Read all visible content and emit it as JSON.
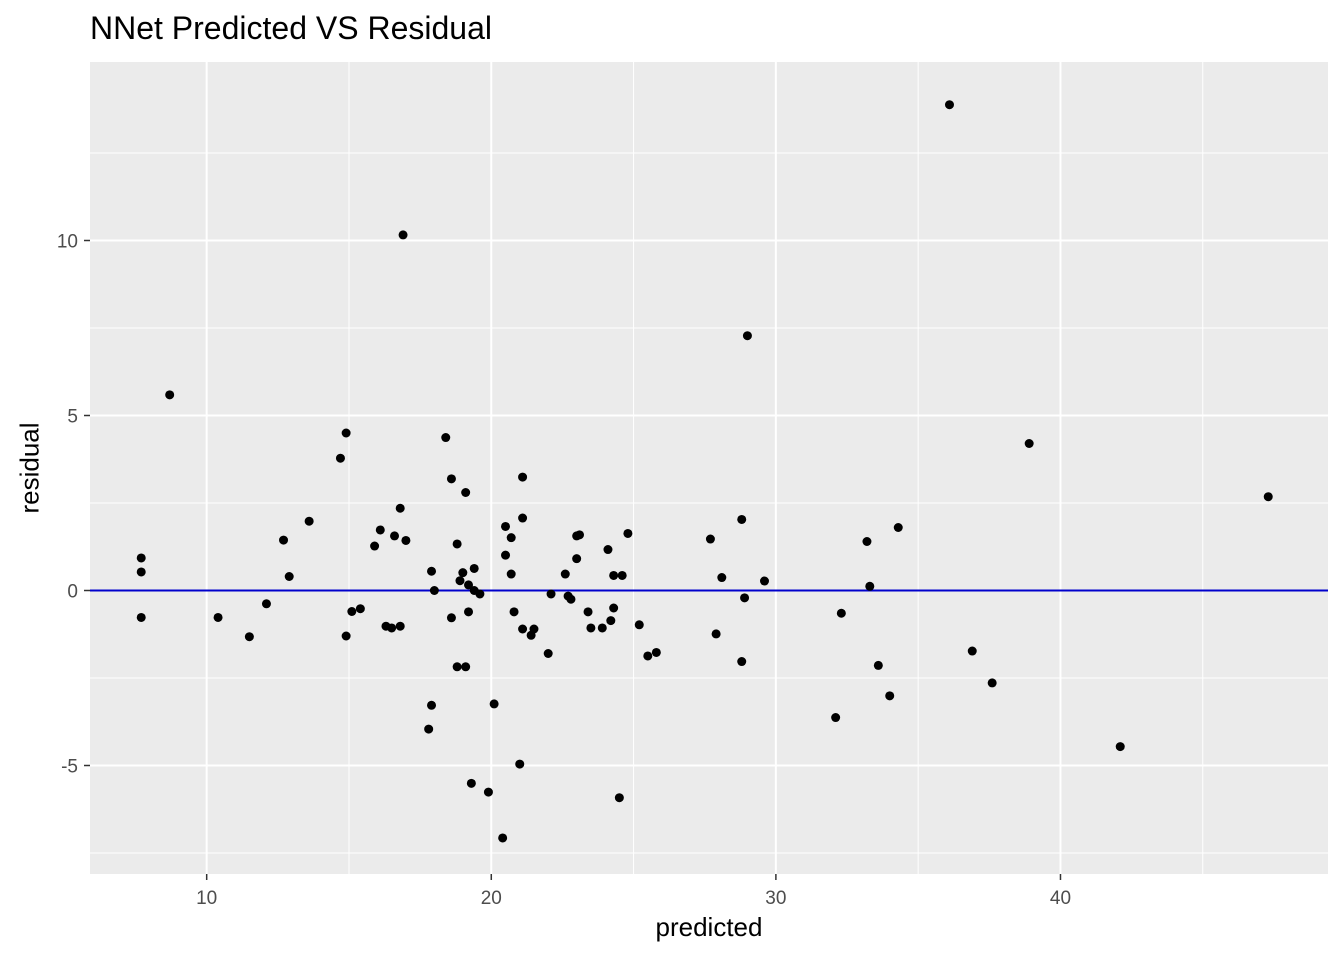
{
  "chart_data": {
    "type": "scatter",
    "title": "NNet Predicted VS Residual",
    "xlabel": "predicted",
    "ylabel": "residual",
    "xlim": [
      5.9,
      49.4
    ],
    "ylim": [
      -8.1,
      15.1
    ],
    "x_ticks": [
      10,
      20,
      30,
      40
    ],
    "y_ticks": [
      -5,
      0,
      5,
      10
    ],
    "grid": true,
    "panel_background": "#ebebeb",
    "grid_color": "#ffffff",
    "point_color": "#000000",
    "reference_line": {
      "y": 0,
      "color": "#0000cc"
    },
    "points": [
      {
        "x": 7.7,
        "y": 0.93
      },
      {
        "x": 7.7,
        "y": 0.53
      },
      {
        "x": 7.7,
        "y": -0.77
      },
      {
        "x": 8.7,
        "y": 5.59
      },
      {
        "x": 10.4,
        "y": -0.77
      },
      {
        "x": 11.5,
        "y": -1.32
      },
      {
        "x": 12.1,
        "y": -0.38
      },
      {
        "x": 12.7,
        "y": 1.44
      },
      {
        "x": 12.9,
        "y": 0.4
      },
      {
        "x": 13.6,
        "y": 1.98
      },
      {
        "x": 14.7,
        "y": 3.78
      },
      {
        "x": 14.9,
        "y": 4.5
      },
      {
        "x": 14.9,
        "y": -1.3
      },
      {
        "x": 15.1,
        "y": -0.6
      },
      {
        "x": 15.4,
        "y": -0.52
      },
      {
        "x": 15.9,
        "y": 1.27
      },
      {
        "x": 16.1,
        "y": 1.73
      },
      {
        "x": 16.3,
        "y": -1.02
      },
      {
        "x": 16.5,
        "y": -1.07
      },
      {
        "x": 16.6,
        "y": 1.56
      },
      {
        "x": 16.8,
        "y": -1.02
      },
      {
        "x": 16.8,
        "y": 2.35
      },
      {
        "x": 16.9,
        "y": 10.16
      },
      {
        "x": 17.0,
        "y": 1.43
      },
      {
        "x": 17.8,
        "y": -3.96
      },
      {
        "x": 17.9,
        "y": -3.28
      },
      {
        "x": 17.9,
        "y": 0.55
      },
      {
        "x": 18.0,
        "y": 0.0
      },
      {
        "x": 18.4,
        "y": 4.37
      },
      {
        "x": 18.6,
        "y": 3.19
      },
      {
        "x": 18.6,
        "y": -0.78
      },
      {
        "x": 18.8,
        "y": -2.18
      },
      {
        "x": 18.8,
        "y": 1.33
      },
      {
        "x": 18.9,
        "y": 0.28
      },
      {
        "x": 19.0,
        "y": 0.51
      },
      {
        "x": 19.1,
        "y": 2.8
      },
      {
        "x": 19.1,
        "y": -2.18
      },
      {
        "x": 19.2,
        "y": 0.16
      },
      {
        "x": 19.2,
        "y": -0.61
      },
      {
        "x": 19.3,
        "y": -5.51
      },
      {
        "x": 19.4,
        "y": 0.0
      },
      {
        "x": 19.4,
        "y": 0.63
      },
      {
        "x": 19.6,
        "y": -0.1
      },
      {
        "x": 19.9,
        "y": -5.76
      },
      {
        "x": 20.1,
        "y": -3.24
      },
      {
        "x": 20.4,
        "y": -7.07
      },
      {
        "x": 20.5,
        "y": 1.83
      },
      {
        "x": 20.5,
        "y": 1.01
      },
      {
        "x": 20.7,
        "y": 1.51
      },
      {
        "x": 20.7,
        "y": 0.47
      },
      {
        "x": 20.8,
        "y": -0.61
      },
      {
        "x": 21.0,
        "y": -4.96
      },
      {
        "x": 21.1,
        "y": 3.24
      },
      {
        "x": 21.1,
        "y": -1.1
      },
      {
        "x": 21.1,
        "y": 2.07
      },
      {
        "x": 21.4,
        "y": -1.28
      },
      {
        "x": 21.5,
        "y": -1.1
      },
      {
        "x": 22.0,
        "y": -1.8
      },
      {
        "x": 22.1,
        "y": -0.1
      },
      {
        "x": 22.6,
        "y": 0.47
      },
      {
        "x": 22.7,
        "y": -0.16
      },
      {
        "x": 22.8,
        "y": -0.25
      },
      {
        "x": 23.0,
        "y": 1.56
      },
      {
        "x": 23.0,
        "y": 0.91
      },
      {
        "x": 23.1,
        "y": 1.59
      },
      {
        "x": 23.4,
        "y": -0.61
      },
      {
        "x": 23.5,
        "y": -1.07
      },
      {
        "x": 23.9,
        "y": -1.07
      },
      {
        "x": 24.1,
        "y": 1.17
      },
      {
        "x": 24.2,
        "y": -0.86
      },
      {
        "x": 24.3,
        "y": -0.5
      },
      {
        "x": 24.3,
        "y": 0.43
      },
      {
        "x": 24.6,
        "y": 0.43
      },
      {
        "x": 24.5,
        "y": -5.92
      },
      {
        "x": 24.8,
        "y": 1.63
      },
      {
        "x": 25.2,
        "y": -0.98
      },
      {
        "x": 25.5,
        "y": -1.87
      },
      {
        "x": 25.8,
        "y": -1.77
      },
      {
        "x": 27.7,
        "y": 1.47
      },
      {
        "x": 27.9,
        "y": -1.24
      },
      {
        "x": 28.1,
        "y": 0.37
      },
      {
        "x": 28.8,
        "y": 2.03
      },
      {
        "x": 28.8,
        "y": -2.03
      },
      {
        "x": 28.9,
        "y": -0.21
      },
      {
        "x": 29.0,
        "y": 7.28
      },
      {
        "x": 29.6,
        "y": 0.27
      },
      {
        "x": 32.1,
        "y": -3.63
      },
      {
        "x": 32.3,
        "y": -0.65
      },
      {
        "x": 33.2,
        "y": 1.4
      },
      {
        "x": 33.3,
        "y": 0.12
      },
      {
        "x": 33.6,
        "y": -2.14
      },
      {
        "x": 34.0,
        "y": -3.01
      },
      {
        "x": 34.3,
        "y": 1.8
      },
      {
        "x": 36.1,
        "y": 13.88
      },
      {
        "x": 36.9,
        "y": -1.73
      },
      {
        "x": 37.6,
        "y": -2.64
      },
      {
        "x": 38.9,
        "y": 4.2
      },
      {
        "x": 42.1,
        "y": -4.46
      },
      {
        "x": 47.3,
        "y": 2.68
      }
    ]
  }
}
